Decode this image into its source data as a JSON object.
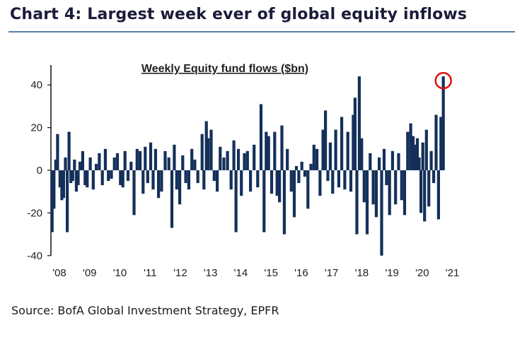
{
  "header": {
    "title": "Chart 4: Largest week ever of global equity inflows"
  },
  "footer": {
    "source": "Source: BofA Global Investment Strategy, EPFR"
  },
  "colors": {
    "bars": "#14305a",
    "highlight": "#e01010",
    "title_rule": "#5b7fa8"
  },
  "chart_data": {
    "type": "bar",
    "title": "Weekly Equity fund flows ($bn)",
    "xlabel": "",
    "ylabel": "",
    "ylim": [
      -40,
      50
    ],
    "y_ticks": [
      40,
      20,
      0,
      -20,
      -40
    ],
    "x_range": [
      2008.0,
      2021.15
    ],
    "x_ticks": [
      {
        "label": "'08",
        "x": 2008
      },
      {
        "label": "'09",
        "x": 2009
      },
      {
        "label": "'10",
        "x": 2010
      },
      {
        "label": "'11",
        "x": 2011
      },
      {
        "label": "'12",
        "x": 2012
      },
      {
        "label": "'13",
        "x": 2013
      },
      {
        "label": "'14",
        "x": 2014
      },
      {
        "label": "'15",
        "x": 2015
      },
      {
        "label": "'16",
        "x": 2016
      },
      {
        "label": "'17",
        "x": 2017
      },
      {
        "label": "'18",
        "x": 2018
      },
      {
        "label": "'19",
        "x": 2019
      },
      {
        "label": "'20",
        "x": 2020
      },
      {
        "label": "'21",
        "x": 2021
      }
    ],
    "grid": false,
    "annotation": "Circled peak: latest week",
    "series": [
      {
        "points": [
          [
            2008.04,
            -29
          ],
          [
            2008.1,
            -18
          ],
          [
            2008.16,
            5
          ],
          [
            2008.22,
            17
          ],
          [
            2008.3,
            -8
          ],
          [
            2008.36,
            -14
          ],
          [
            2008.42,
            -13
          ],
          [
            2008.48,
            6
          ],
          [
            2008.54,
            -29
          ],
          [
            2008.6,
            18
          ],
          [
            2008.66,
            -6
          ],
          [
            2008.72,
            -5
          ],
          [
            2008.78,
            5
          ],
          [
            2008.84,
            -10
          ],
          [
            2008.9,
            -7
          ],
          [
            2008.96,
            4
          ],
          [
            2009.05,
            9
          ],
          [
            2009.13,
            -7
          ],
          [
            2009.2,
            -8
          ],
          [
            2009.3,
            6
          ],
          [
            2009.4,
            -9
          ],
          [
            2009.5,
            3
          ],
          [
            2009.6,
            8
          ],
          [
            2009.7,
            -7
          ],
          [
            2009.8,
            10
          ],
          [
            2009.9,
            -5
          ],
          [
            2010.0,
            -4
          ],
          [
            2010.1,
            6
          ],
          [
            2010.2,
            8
          ],
          [
            2010.3,
            -7
          ],
          [
            2010.38,
            -8
          ],
          [
            2010.45,
            9
          ],
          [
            2010.55,
            -5
          ],
          [
            2010.65,
            4
          ],
          [
            2010.75,
            -21
          ],
          [
            2010.85,
            10
          ],
          [
            2010.95,
            9
          ],
          [
            2011.05,
            -11
          ],
          [
            2011.12,
            11
          ],
          [
            2011.2,
            -6
          ],
          [
            2011.3,
            13
          ],
          [
            2011.38,
            -9
          ],
          [
            2011.46,
            10
          ],
          [
            2011.56,
            -13
          ],
          [
            2011.66,
            -10
          ],
          [
            2011.78,
            9
          ],
          [
            2011.9,
            6
          ],
          [
            2012.0,
            -27
          ],
          [
            2012.08,
            12
          ],
          [
            2012.16,
            -9
          ],
          [
            2012.26,
            -16
          ],
          [
            2012.36,
            7
          ],
          [
            2012.46,
            -6
          ],
          [
            2012.56,
            -9
          ],
          [
            2012.66,
            10
          ],
          [
            2012.76,
            5
          ],
          [
            2012.86,
            -6
          ],
          [
            2013.0,
            17
          ],
          [
            2013.06,
            -9
          ],
          [
            2013.14,
            23
          ],
          [
            2013.2,
            15
          ],
          [
            2013.3,
            19
          ],
          [
            2013.4,
            -5
          ],
          [
            2013.5,
            -10
          ],
          [
            2013.6,
            11
          ],
          [
            2013.72,
            6
          ],
          [
            2013.84,
            9
          ],
          [
            2013.96,
            -9
          ],
          [
            2014.05,
            14
          ],
          [
            2014.12,
            -29
          ],
          [
            2014.2,
            10
          ],
          [
            2014.3,
            -12
          ],
          [
            2014.4,
            8
          ],
          [
            2014.5,
            9
          ],
          [
            2014.6,
            -10
          ],
          [
            2014.72,
            12
          ],
          [
            2014.84,
            -8
          ],
          [
            2014.95,
            31
          ],
          [
            2015.05,
            -29
          ],
          [
            2015.12,
            18
          ],
          [
            2015.2,
            16
          ],
          [
            2015.3,
            -11
          ],
          [
            2015.4,
            18
          ],
          [
            2015.48,
            -12
          ],
          [
            2015.56,
            -15
          ],
          [
            2015.64,
            21
          ],
          [
            2015.72,
            -30
          ],
          [
            2015.82,
            10
          ],
          [
            2015.95,
            -10
          ],
          [
            2016.05,
            -22
          ],
          [
            2016.12,
            2
          ],
          [
            2016.2,
            -6
          ],
          [
            2016.3,
            4
          ],
          [
            2016.4,
            -3
          ],
          [
            2016.5,
            -18
          ],
          [
            2016.6,
            3
          ],
          [
            2016.7,
            12
          ],
          [
            2016.8,
            10
          ],
          [
            2016.9,
            -12
          ],
          [
            2017.0,
            19
          ],
          [
            2017.08,
            28
          ],
          [
            2017.16,
            -5
          ],
          [
            2017.24,
            13
          ],
          [
            2017.32,
            -11
          ],
          [
            2017.42,
            19
          ],
          [
            2017.52,
            -8
          ],
          [
            2017.62,
            25
          ],
          [
            2017.72,
            -9
          ],
          [
            2017.82,
            18
          ],
          [
            2017.92,
            -10
          ],
          [
            2018.0,
            26
          ],
          [
            2018.06,
            34
          ],
          [
            2018.12,
            -30
          ],
          [
            2018.2,
            44
          ],
          [
            2018.28,
            15
          ],
          [
            2018.36,
            -15
          ],
          [
            2018.46,
            -30
          ],
          [
            2018.56,
            8
          ],
          [
            2018.66,
            -16
          ],
          [
            2018.76,
            -22
          ],
          [
            2018.86,
            6
          ],
          [
            2018.94,
            -40
          ],
          [
            2019.02,
            10
          ],
          [
            2019.1,
            -7
          ],
          [
            2019.2,
            -21
          ],
          [
            2019.3,
            9
          ],
          [
            2019.4,
            -16
          ],
          [
            2019.5,
            8
          ],
          [
            2019.6,
            -14
          ],
          [
            2019.7,
            -21
          ],
          [
            2019.8,
            18
          ],
          [
            2019.9,
            22
          ],
          [
            2019.98,
            16
          ],
          [
            2020.05,
            12
          ],
          [
            2020.12,
            15
          ],
          [
            2020.18,
            6
          ],
          [
            2020.24,
            -20
          ],
          [
            2020.3,
            13
          ],
          [
            2020.36,
            -24
          ],
          [
            2020.42,
            19
          ],
          [
            2020.5,
            -17
          ],
          [
            2020.58,
            9
          ],
          [
            2020.66,
            -6
          ],
          [
            2020.74,
            26
          ],
          [
            2020.82,
            -23
          ],
          [
            2020.9,
            25
          ],
          [
            2020.98,
            44
          ]
        ]
      }
    ]
  }
}
